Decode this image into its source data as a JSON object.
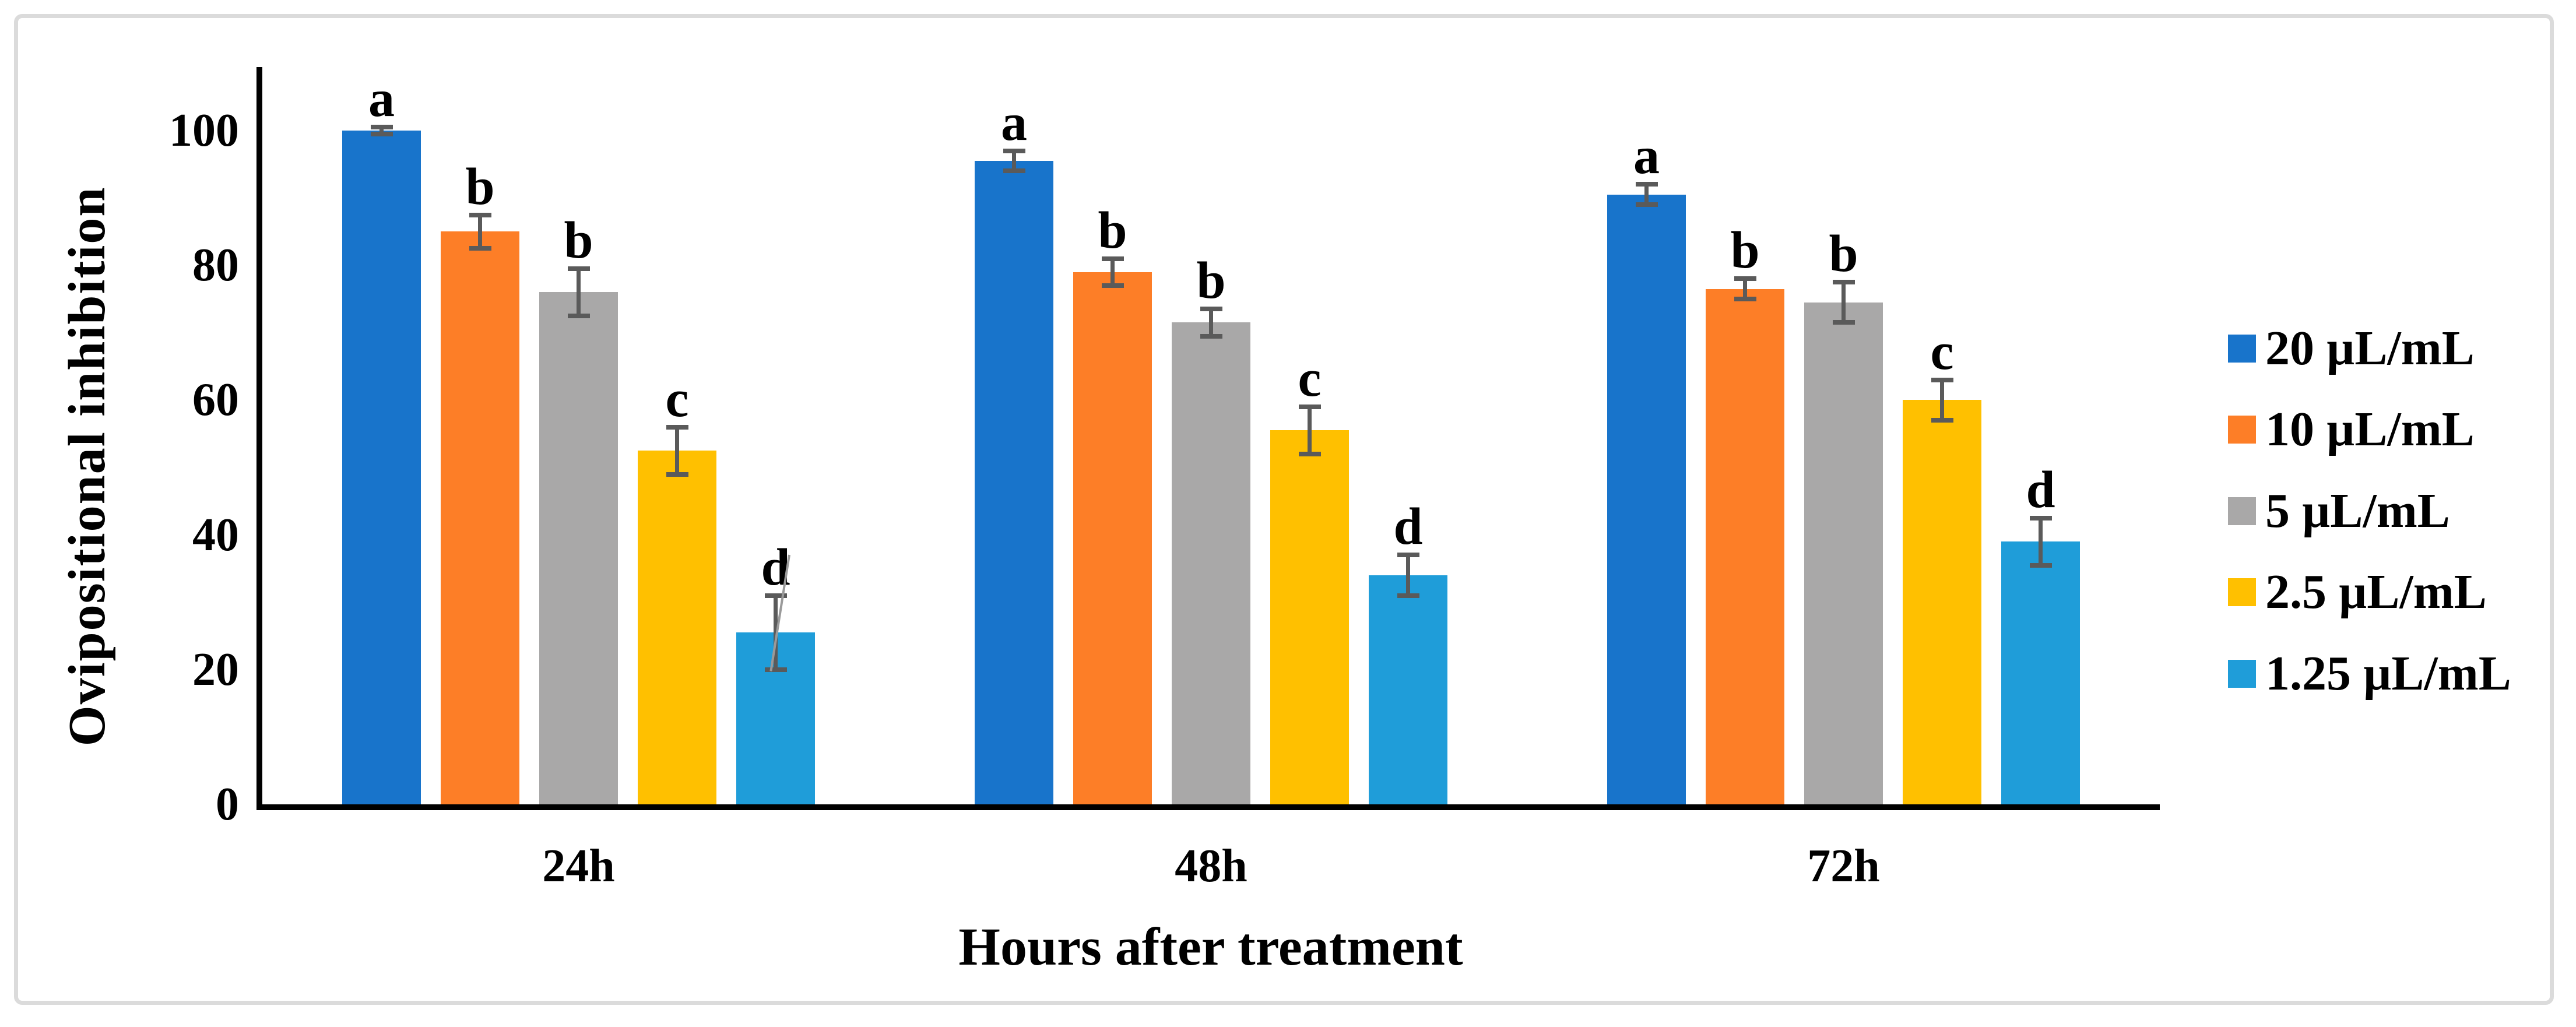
{
  "chart_data": {
    "type": "bar",
    "title": "",
    "xlabel": "Hours after treatment",
    "ylabel": "Ovipositional inhibition",
    "categories": [
      "24h",
      "48h",
      "72h"
    ],
    "series": [
      {
        "name": "20 µL/mL",
        "color": "#1874CB",
        "values": [
          100,
          95.5,
          90.5
        ],
        "errors": [
          0.5,
          1.5,
          1.5
        ],
        "letters": [
          "a",
          "a",
          "a"
        ]
      },
      {
        "name": "10 µL/mL",
        "color": "#FD7E27",
        "values": [
          85,
          79,
          76.5
        ],
        "errors": [
          2.5,
          2,
          1.5
        ],
        "letters": [
          "b",
          "b",
          "b"
        ]
      },
      {
        "name": "5 µL/mL",
        "color": "#A9A8A8",
        "values": [
          76,
          71.5,
          74.5
        ],
        "errors": [
          3.5,
          2,
          3
        ],
        "letters": [
          "b",
          "b",
          "b"
        ]
      },
      {
        "name": "2.5 µL/mL",
        "color": "#FFC000",
        "values": [
          52.5,
          55.5,
          60
        ],
        "errors": [
          3.5,
          3.5,
          3
        ],
        "letters": [
          "c",
          "c",
          "c"
        ]
      },
      {
        "name": "1.25 µL/mL",
        "color": "#1F9DD9",
        "values": [
          25.5,
          34,
          39
        ],
        "errors": [
          5.5,
          3,
          3.5
        ],
        "letters": [
          "d",
          "d",
          "d"
        ]
      }
    ],
    "yticks": [
      0,
      20,
      40,
      60,
      80,
      100
    ],
    "ylim": [
      0,
      110
    ],
    "grid": false,
    "legend_position": "right",
    "axis_color": "#000000",
    "error_bar_color": "#5A5A5A"
  }
}
